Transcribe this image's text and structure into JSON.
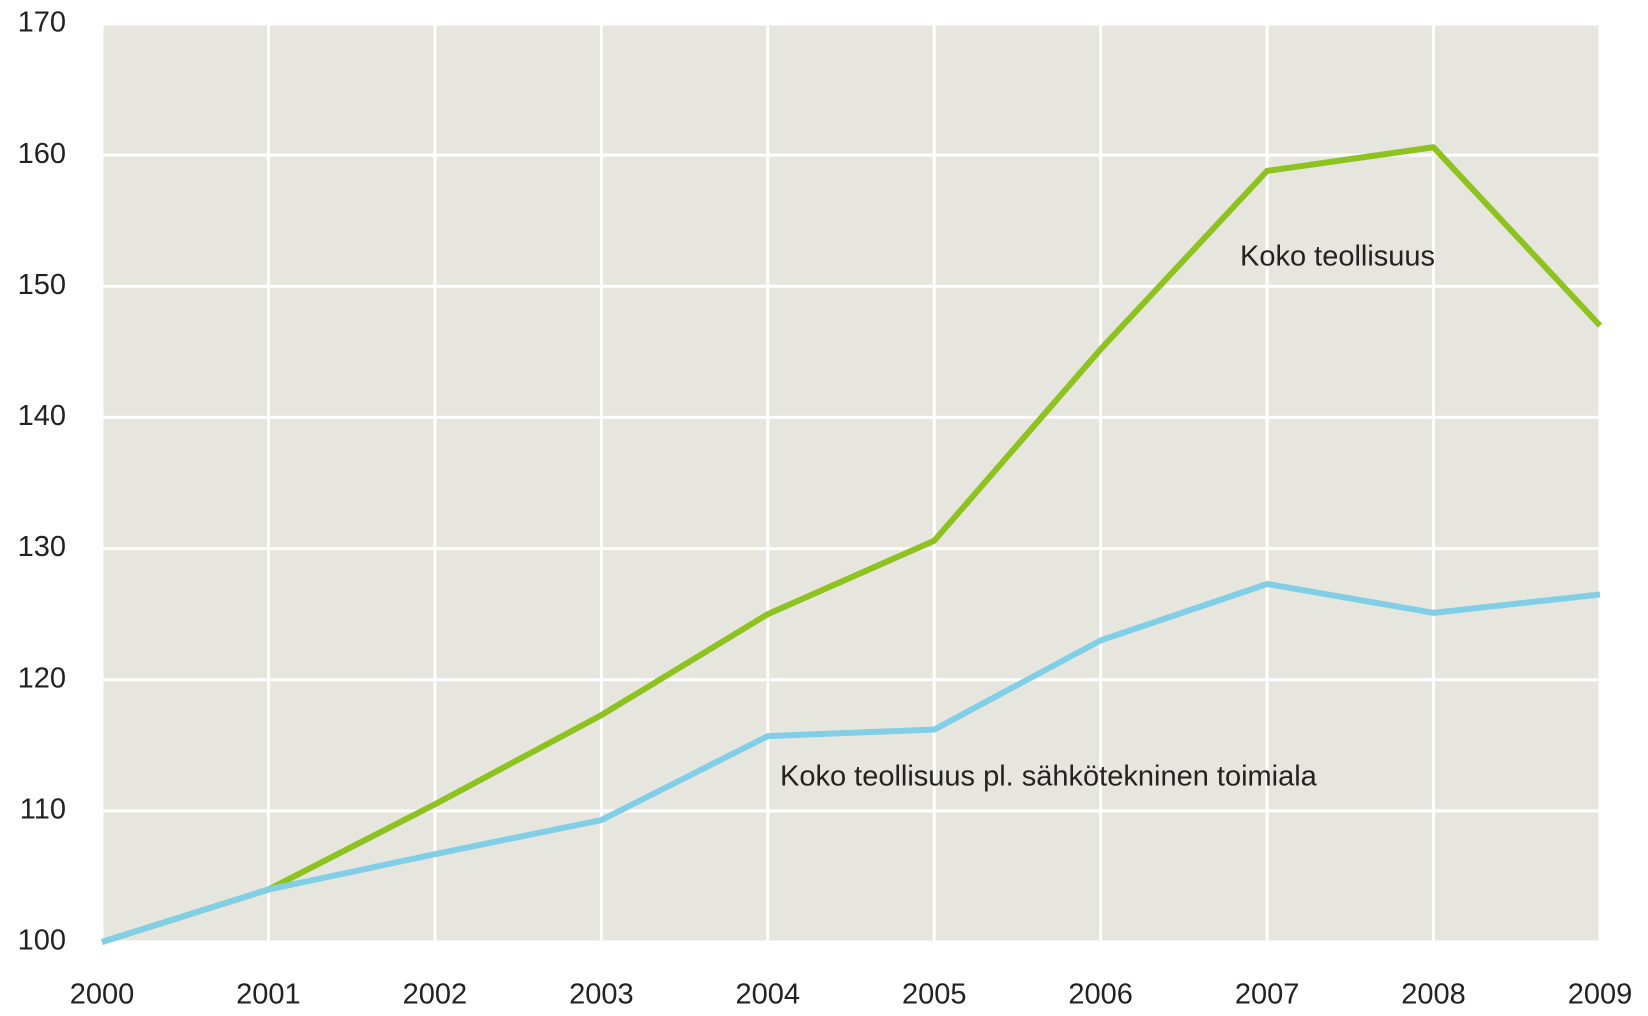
{
  "chart_data": {
    "type": "line",
    "x": [
      2000,
      2001,
      2002,
      2003,
      2004,
      2005,
      2006,
      2007,
      2008,
      2009
    ],
    "xlim": [
      2000,
      2009
    ],
    "xticks": [
      2000,
      2001,
      2002,
      2003,
      2004,
      2005,
      2006,
      2007,
      2008,
      2009
    ],
    "ylim": [
      100,
      170
    ],
    "yticks": [
      100,
      110,
      120,
      130,
      140,
      150,
      160,
      170
    ],
    "grid": true,
    "series": [
      {
        "name": "Koko teollisuus",
        "color": "#8dc21f",
        "values": [
          100,
          104,
          110.5,
          117.3,
          125,
          130.6,
          145.2,
          158.8,
          160.6,
          147
        ]
      },
      {
        "name": "Koko teollisuus pl. sähkötekninen toimiala",
        "color": "#80cfe6",
        "values": [
          100,
          104,
          106.7,
          109.3,
          115.7,
          116.2,
          123,
          127.3,
          125.1,
          126.5
        ]
      }
    ]
  }
}
